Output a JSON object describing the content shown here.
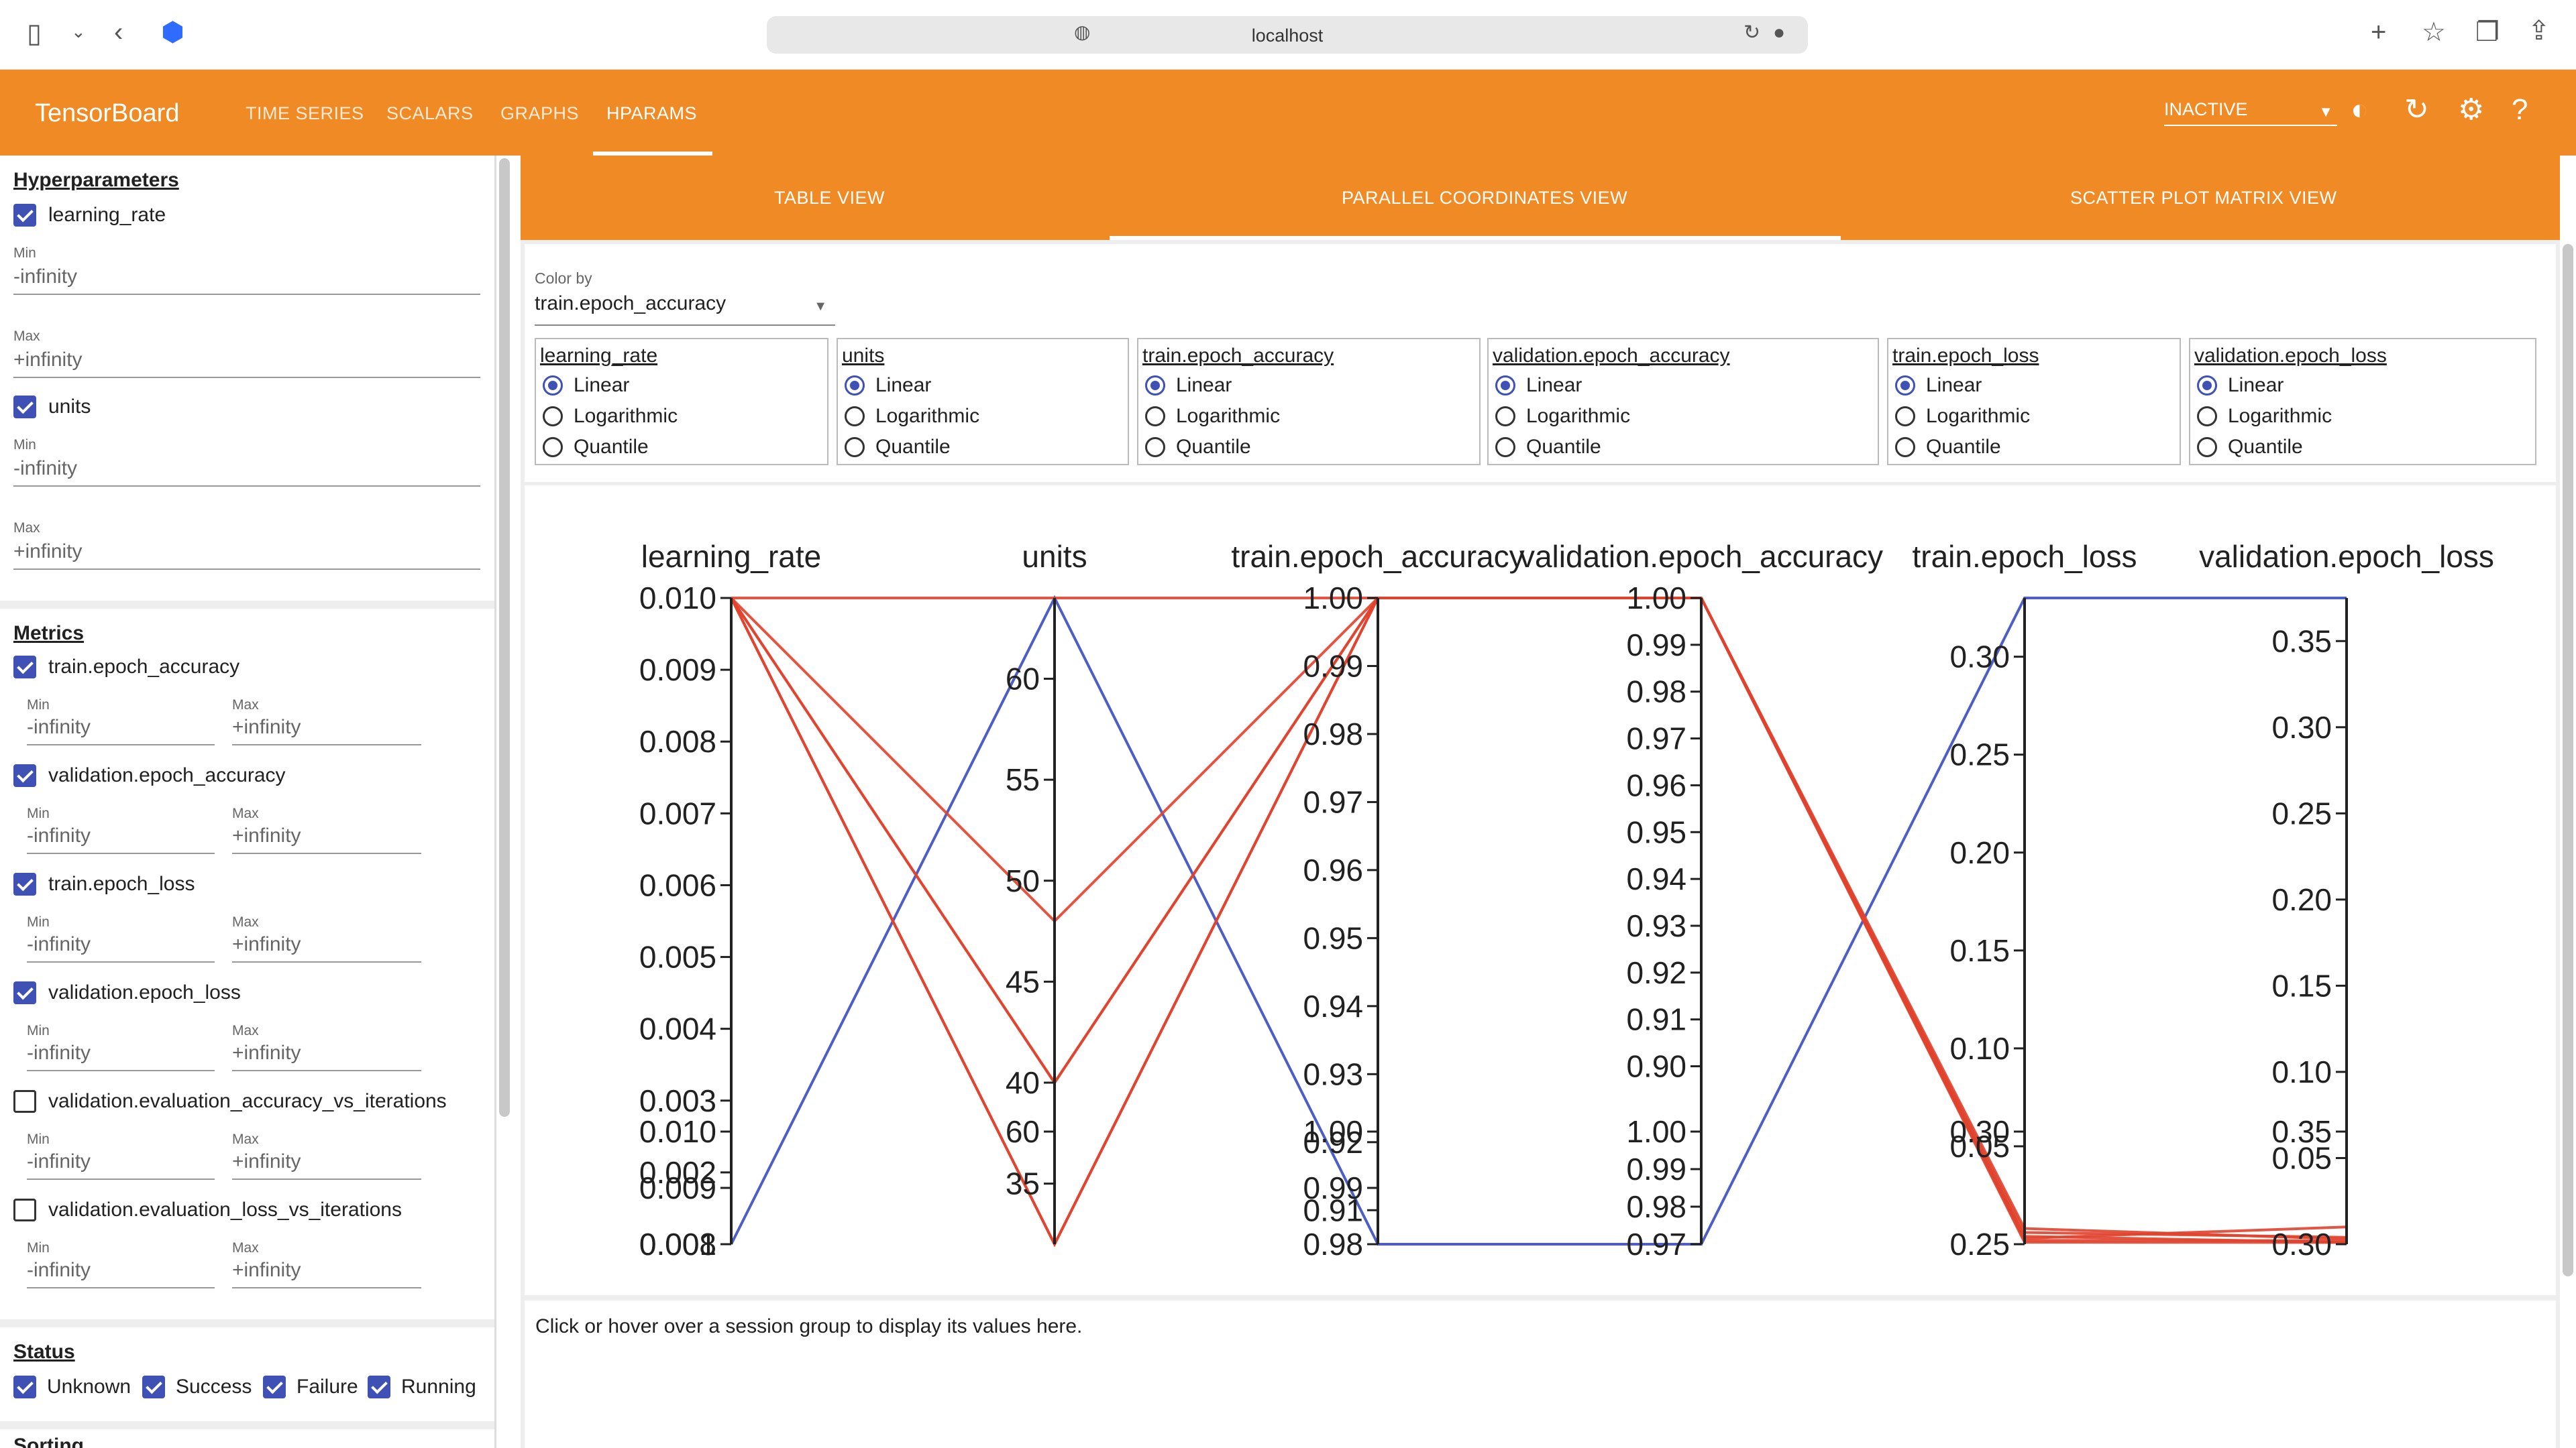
{
  "browser": {
    "url": "localhost"
  },
  "toolbar": {
    "brand": "TensorBoard",
    "nav": [
      "TIME SERIES",
      "SCALARS",
      "GRAPHS",
      "HPARAMS"
    ],
    "active_nav": "HPARAMS",
    "run_status": "INACTIVE",
    "accent": "#f08a24"
  },
  "sidebar": {
    "hyperparameters_title": "Hyperparameters",
    "hparams": [
      {
        "name": "learning_rate",
        "checked": true,
        "min_label": "Min",
        "min": "-infinity",
        "max_label": "Max",
        "max": "+infinity"
      },
      {
        "name": "units",
        "checked": true,
        "min_label": "Min",
        "min": "-infinity",
        "max_label": "Max",
        "max": "+infinity"
      }
    ],
    "metrics_title": "Metrics",
    "metrics": [
      {
        "name": "train.epoch_accuracy",
        "checked": true,
        "min_label": "Min",
        "min": "-infinity",
        "max_label": "Max",
        "max": "+infinity"
      },
      {
        "name": "validation.epoch_accuracy",
        "checked": true,
        "min_label": "Min",
        "min": "-infinity",
        "max_label": "Max",
        "max": "+infinity"
      },
      {
        "name": "train.epoch_loss",
        "checked": true,
        "min_label": "Min",
        "min": "-infinity",
        "max_label": "Max",
        "max": "+infinity"
      },
      {
        "name": "validation.epoch_loss",
        "checked": true,
        "min_label": "Min",
        "min": "-infinity",
        "max_label": "Max",
        "max": "+infinity"
      },
      {
        "name": "validation.evaluation_accuracy_vs_iterations",
        "checked": false,
        "min_label": "Min",
        "min": "-infinity",
        "max_label": "Max",
        "max": "+infinity"
      },
      {
        "name": "validation.evaluation_loss_vs_iterations",
        "checked": false,
        "min_label": "Min",
        "min": "-infinity",
        "max_label": "Max",
        "max": "+infinity"
      }
    ],
    "status_title": "Status",
    "statuses": [
      {
        "name": "Unknown",
        "checked": true
      },
      {
        "name": "Success",
        "checked": true
      },
      {
        "name": "Failure",
        "checked": true
      },
      {
        "name": "Running",
        "checked": true
      }
    ],
    "sorting_title": "Sorting"
  },
  "view_tabs": [
    "TABLE VIEW",
    "PARALLEL COORDINATES VIEW",
    "SCATTER PLOT MATRIX VIEW"
  ],
  "active_view": "PARALLEL COORDINATES VIEW",
  "color_by": {
    "label": "Color by",
    "value": "train.epoch_accuracy"
  },
  "scale_options": [
    "Linear",
    "Logarithmic",
    "Quantile"
  ],
  "scales": [
    {
      "column": "learning_rate",
      "selected": "Linear"
    },
    {
      "column": "units",
      "selected": "Linear"
    },
    {
      "column": "train.epoch_accuracy",
      "selected": "Linear"
    },
    {
      "column": "validation.epoch_accuracy",
      "selected": "Linear"
    },
    {
      "column": "train.epoch_loss",
      "selected": "Linear"
    },
    {
      "column": "validation.epoch_loss",
      "selected": "Linear"
    }
  ],
  "footer_text": "Click or hover over a session group to display its values here.",
  "chart_data": {
    "type": "parallel_coordinates",
    "axes": [
      {
        "name": "learning_rate",
        "min": 0.001,
        "max": 0.01,
        "ticks": [
          "0.010",
          "0.009",
          "0.008",
          "0.007",
          "0.006",
          "0.005",
          "0.004",
          "0.003",
          "0.002",
          "0.001"
        ],
        "ghost_ticks": [
          "0.010",
          "0.009",
          "0.008"
        ]
      },
      {
        "name": "units",
        "min": 32,
        "max": 64,
        "ticks": [
          "60",
          "55",
          "50",
          "45",
          "40",
          "35"
        ],
        "ghost_ticks": [
          "60"
        ]
      },
      {
        "name": "train.epoch_accuracy",
        "min": 0.905,
        "max": 1.0,
        "ticks": [
          "1.00",
          "0.99",
          "0.98",
          "0.97",
          "0.96",
          "0.95",
          "0.94",
          "0.93",
          "0.92",
          "0.91"
        ],
        "ghost_ticks": [
          "1.00",
          "0.99",
          "0.98"
        ]
      },
      {
        "name": "validation.epoch_accuracy",
        "min": 0.862,
        "max": 1.0,
        "ticks": [
          "1.00",
          "0.99",
          "0.98",
          "0.97",
          "0.96",
          "0.95",
          "0.94",
          "0.93",
          "0.92",
          "0.91",
          "0.90"
        ],
        "ghost_ticks": [
          "1.00",
          "0.99",
          "0.98",
          "0.97"
        ]
      },
      {
        "name": "train.epoch_loss",
        "min": 0.0,
        "max": 0.33,
        "ticks": [
          "0.30",
          "0.25",
          "0.20",
          "0.15",
          "0.10",
          "0.05"
        ],
        "ghost_ticks": [
          "0.30",
          "0.25"
        ]
      },
      {
        "name": "validation.epoch_loss",
        "min": 0.0,
        "max": 0.375,
        "ticks": [
          "0.35",
          "0.30",
          "0.25",
          "0.20",
          "0.15",
          "0.10",
          "0.05"
        ],
        "ghost_ticks": [
          "0.35",
          "0.30"
        ]
      }
    ],
    "series": [
      {
        "color": "#3b4cc0",
        "values": [
          0.001,
          64,
          0.905,
          0.862,
          0.33,
          0.375
        ]
      },
      {
        "color": "#e0422e",
        "values": [
          0.01,
          48,
          1.0,
          1.0,
          0.006,
          0.004
        ]
      },
      {
        "color": "#e0422e",
        "values": [
          0.01,
          40,
          1.0,
          1.0,
          0.004,
          0.001
        ]
      },
      {
        "color": "#e0422e",
        "values": [
          0.01,
          32,
          1.0,
          1.0,
          0.003,
          0.01
        ]
      },
      {
        "color": "#e0422e",
        "values": [
          0.01,
          64,
          1.0,
          1.0,
          0.002,
          0.002
        ]
      },
      {
        "color": "#e0422e",
        "values": [
          0.01,
          40,
          1.0,
          1.0,
          0.008,
          0.003
        ]
      },
      {
        "color": "#e0422e",
        "values": [
          0.01,
          32,
          1.0,
          1.0,
          0.001,
          0.001
        ]
      }
    ]
  }
}
